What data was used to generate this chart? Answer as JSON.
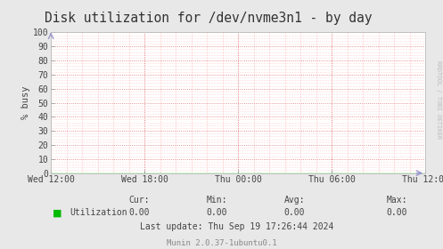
{
  "title": "Disk utilization for /dev/nvme3n1 - by day",
  "ylabel": "% busy",
  "background_color": "#e8e8e8",
  "plot_bg_color": "#ffffff",
  "grid_major_color": "#ff9999",
  "grid_minor_color": "#ffcccc",
  "line_color": "#00cc00",
  "line_value": 0.0,
  "ylim": [
    0,
    100
  ],
  "yticks": [
    0,
    10,
    20,
    30,
    40,
    50,
    60,
    70,
    80,
    90,
    100
  ],
  "xtick_labels": [
    "Wed 12:00",
    "Wed 18:00",
    "Thu 00:00",
    "Thu 06:00",
    "Thu 12:00"
  ],
  "legend_label": "Utilization",
  "legend_color": "#00bb00",
  "cur_val": "0.00",
  "min_val": "0.00",
  "avg_val": "0.00",
  "max_val": "0.00",
  "last_update": "Last update: Thu Sep 19 17:26:44 2024",
  "watermark": "RRDTOOL / TOBI OETIKER",
  "footer": "Munin 2.0.37-1ubuntu0.1",
  "title_fontsize": 10.5,
  "axis_fontsize": 7,
  "ylabel_fontsize": 7.5,
  "footer_fontsize": 6.5,
  "stats_fontsize": 7,
  "watermark_fontsize": 4.8
}
